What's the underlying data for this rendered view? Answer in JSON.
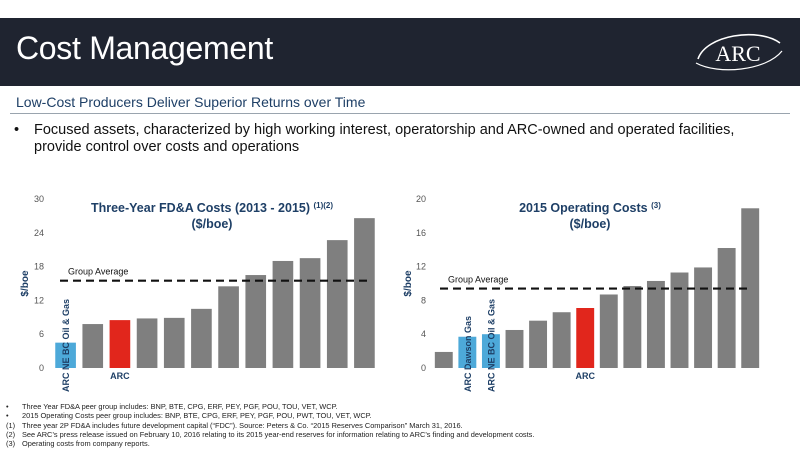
{
  "header": {
    "title": "Cost Management",
    "logo_text": "ARC",
    "subtitle": "Low-Cost Producers Deliver Superior Returns over Time"
  },
  "bullet": {
    "marker": "•",
    "text": "Focused assets, characterized by high working interest, operatorship and ARC-owned and operated facilities, provide control over costs and operations"
  },
  "colors": {
    "header_bg": "#1f2430",
    "subtitle": "#1e3f66",
    "bar_peer": "#7f7f7f",
    "bar_arc": "#e1261c",
    "bar_highlight": "#4da9d9",
    "average_line": "#111111"
  },
  "chart_data": [
    {
      "type": "bar",
      "title": "Three-Year FD&A Costs (2013 - 2015) ",
      "title_superscript": "(1)(2)",
      "title_line2": "($/boe)",
      "ylabel": "$/boe",
      "ylim": [
        0,
        30
      ],
      "yticks": [
        0,
        6,
        12,
        18,
        24,
        30
      ],
      "values": [
        4.5,
        7.8,
        8.5,
        8.8,
        8.9,
        10.5,
        14.5,
        16.5,
        19.0,
        19.5,
        22.7,
        26.6
      ],
      "colors": [
        "#4da9d9",
        "#7f7f7f",
        "#e1261c",
        "#7f7f7f",
        "#7f7f7f",
        "#7f7f7f",
        "#7f7f7f",
        "#7f7f7f",
        "#7f7f7f",
        "#7f7f7f",
        "#7f7f7f",
        "#7f7f7f"
      ],
      "bar_labels": [
        {
          "index": 0,
          "text": "ARC NE BC Oil & Gas",
          "orientation": "vertical"
        },
        {
          "index": 2,
          "text": "ARC",
          "orientation": "horizontal"
        }
      ],
      "average": {
        "value": 15.5,
        "label": "Group Average"
      }
    },
    {
      "type": "bar",
      "title": "2015 Operating Costs ",
      "title_superscript": "(3)",
      "title_line2": "($/boe)",
      "ylabel": "$/boe",
      "ylim": [
        0,
        20
      ],
      "yticks": [
        0,
        4,
        8,
        12,
        16,
        20
      ],
      "values": [
        1.9,
        3.7,
        4.0,
        4.5,
        5.6,
        6.6,
        7.1,
        8.7,
        9.7,
        10.3,
        11.3,
        11.9,
        14.2,
        18.9
      ],
      "colors": [
        "#7f7f7f",
        "#4da9d9",
        "#4da9d9",
        "#7f7f7f",
        "#7f7f7f",
        "#7f7f7f",
        "#e1261c",
        "#7f7f7f",
        "#7f7f7f",
        "#7f7f7f",
        "#7f7f7f",
        "#7f7f7f",
        "#7f7f7f",
        "#7f7f7f"
      ],
      "bar_labels": [
        {
          "index": 1,
          "text": "ARC Dawson Gas",
          "orientation": "vertical"
        },
        {
          "index": 2,
          "text": "ARC NE BC Oil & Gas",
          "orientation": "vertical"
        },
        {
          "index": 6,
          "text": "ARC",
          "orientation": "horizontal"
        }
      ],
      "average": {
        "value": 9.4,
        "label": "Group Average"
      }
    }
  ],
  "footnotes": [
    {
      "marker": "•",
      "text": "Three Year FD&A peer group includes: BNP, BTE, CPG, ERF, PEY, PGF, POU, TOU, VET, WCP."
    },
    {
      "marker": "•",
      "text": "2015 Operating Costs peer group includes: BNP, BTE, CPG, ERF, PEY, PGF, POU, PWT, TOU, VET, WCP."
    },
    {
      "marker": "(1)",
      "text": "Three year 2P FD&A includes future development capital (“FDC”). Source: Peters & Co. “2015 Reserves Comparison” March 31, 2016."
    },
    {
      "marker": "(2)",
      "text": "See ARC’s press release issued on February 10, 2016 relating to its 2015 year-end reserves for information relating to ARC’s finding and development costs."
    },
    {
      "marker": "(3)",
      "text": "Operating costs from company reports."
    }
  ]
}
